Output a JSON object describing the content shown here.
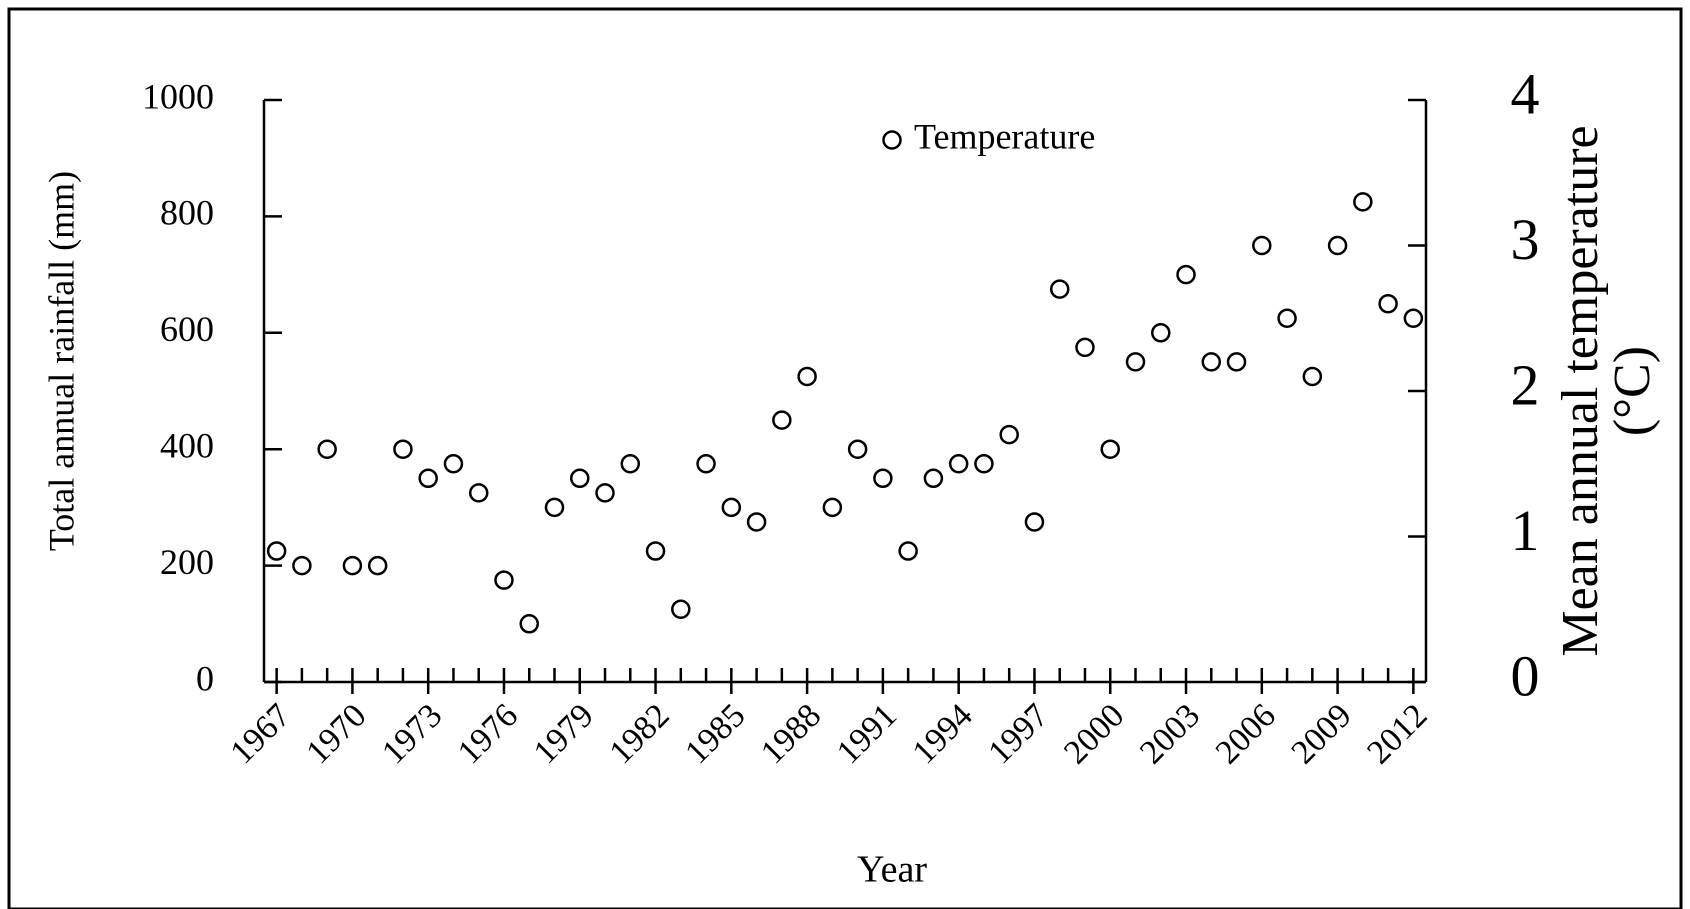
{
  "chart_data": {
    "type": "scatter",
    "xlabel": "Year",
    "ylabel": "Total annual rainfall (mm)",
    "y2label": [
      "Mean annual temperature",
      "(°C)"
    ],
    "x": [
      1967,
      1968,
      1969,
      1970,
      1971,
      1972,
      1973,
      1974,
      1975,
      1976,
      1977,
      1978,
      1979,
      1980,
      1981,
      1982,
      1983,
      1984,
      1985,
      1986,
      1987,
      1988,
      1989,
      1990,
      1991,
      1992,
      1993,
      1994,
      1995,
      1996,
      1997,
      1998,
      1999,
      2000,
      2001,
      2002,
      2003,
      2004,
      2005,
      2006,
      2007,
      2008,
      2009,
      2010,
      2011,
      2012
    ],
    "series": [
      {
        "name": "Temperature",
        "color": "#000000",
        "axis": "y2",
        "values": [
          0.9,
          0.8,
          1.6,
          0.8,
          0.8,
          1.6,
          1.4,
          1.5,
          1.3,
          0.7,
          0.4,
          1.2,
          1.4,
          1.3,
          1.5,
          0.9,
          0.5,
          1.5,
          1.2,
          1.1,
          1.8,
          2.1,
          1.2,
          1.6,
          1.4,
          0.9,
          1.4,
          1.5,
          1.5,
          1.7,
          1.1,
          2.7,
          2.3,
          1.6,
          2.2,
          2.4,
          2.8,
          2.2,
          2.2,
          3.0,
          2.5,
          2.1,
          3.0,
          3.3,
          2.6,
          2.5
        ]
      }
    ],
    "xlim": [
      1966.5,
      2012.5
    ],
    "xticks": [
      1967,
      1970,
      1973,
      1976,
      1979,
      1982,
      1985,
      1988,
      1991,
      1994,
      1997,
      2000,
      2003,
      2006,
      2009,
      2012
    ],
    "ylim": [
      0,
      1000
    ],
    "yticks": [
      0,
      200,
      400,
      600,
      800,
      1000
    ],
    "y2lim": [
      0,
      4
    ],
    "y2ticks": [
      0,
      1,
      2,
      3,
      4
    ],
    "legend": "top"
  }
}
